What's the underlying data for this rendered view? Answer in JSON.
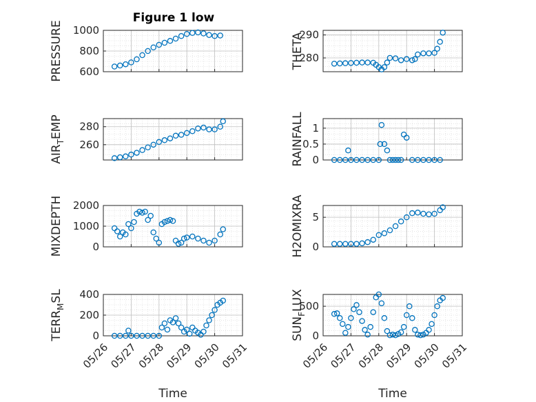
{
  "figure_title": "Figure 1 low",
  "colors": {
    "marker": "#0072BD",
    "axis": "#262626",
    "grid": "#bfbfbf",
    "minor_grid": "#dcdcdc",
    "background": "#ffffff"
  },
  "chart_data": [
    {
      "type": "scatter",
      "name": "pressure",
      "title": "Figure 1 low",
      "ylabel": "PRESSURE",
      "xlim": [
        "2020-05-26",
        "2020-05-31"
      ],
      "ylim": [
        600,
        1000
      ],
      "yticks": [
        600,
        800,
        1000
      ],
      "xticks": [
        "05/26",
        "05/27",
        "05/28",
        "05/29",
        "05/30",
        "05/31"
      ],
      "show_xticks": false,
      "xlabel": "",
      "x": [
        0.4,
        0.6,
        0.8,
        1.0,
        1.2,
        1.4,
        1.6,
        1.8,
        2.0,
        2.2,
        2.4,
        2.6,
        2.8,
        3.0,
        3.2,
        3.4,
        3.6,
        3.8,
        4.0,
        4.2
      ],
      "y": [
        650,
        660,
        672,
        690,
        720,
        760,
        800,
        835,
        860,
        880,
        898,
        920,
        945,
        965,
        975,
        980,
        970,
        955,
        945,
        950
      ]
    },
    {
      "type": "scatter",
      "name": "theta",
      "ylabel": "THETA",
      "xlim": [
        "2020-05-26",
        "2020-05-31"
      ],
      "ylim": [
        274,
        292
      ],
      "yticks": [
        280,
        290
      ],
      "xticks": [
        "05/26",
        "05/27",
        "05/28",
        "05/29",
        "05/30",
        "05/31"
      ],
      "show_xticks": false,
      "xlabel": "",
      "x": [
        0.4,
        0.6,
        0.8,
        1.0,
        1.2,
        1.4,
        1.6,
        1.8,
        1.9,
        2.0,
        2.1,
        2.2,
        2.3,
        2.4,
        2.6,
        2.8,
        3.0,
        3.2,
        3.3,
        3.4,
        3.6,
        3.8,
        4.0,
        4.1,
        4.2,
        4.3
      ],
      "y": [
        277.5,
        277.6,
        277.7,
        277.8,
        277.9,
        278.0,
        278.0,
        277.9,
        277.0,
        276.0,
        275.0,
        276.0,
        278.0,
        280.0,
        279.8,
        279.0,
        279.5,
        279.0,
        279.5,
        281.5,
        282.0,
        282.0,
        282.2,
        284.0,
        287.0,
        291.0
      ]
    },
    {
      "type": "scatter",
      "name": "air_temp",
      "ylabel": "AIR_TEMP",
      "xlim": [
        "2020-05-26",
        "2020-05-31"
      ],
      "ylim": [
        243,
        289
      ],
      "yticks": [
        260,
        280
      ],
      "xticks": [
        "05/26",
        "05/27",
        "05/28",
        "05/29",
        "05/30",
        "05/31"
      ],
      "show_xticks": false,
      "xlabel": "",
      "x": [
        0.4,
        0.6,
        0.8,
        1.0,
        1.2,
        1.4,
        1.6,
        1.8,
        2.0,
        2.2,
        2.4,
        2.6,
        2.8,
        3.0,
        3.2,
        3.4,
        3.6,
        3.8,
        4.0,
        4.2,
        4.3
      ],
      "y": [
        245,
        246,
        247,
        249,
        251,
        254,
        257,
        260,
        263,
        265,
        267,
        270,
        271,
        273,
        275,
        278,
        279,
        277,
        277,
        280,
        286
      ]
    },
    {
      "type": "scatter",
      "name": "rainfall",
      "ylabel": "RAINFALL",
      "xlim": [
        "2020-05-26",
        "2020-05-31"
      ],
      "ylim": [
        0,
        1.3
      ],
      "yticks": [
        0,
        0.5,
        1
      ],
      "xticks": [
        "05/26",
        "05/27",
        "05/28",
        "05/29",
        "05/30",
        "05/31"
      ],
      "show_xticks": false,
      "xlabel": "",
      "x": [
        0.4,
        0.6,
        0.8,
        0.9,
        1.0,
        1.2,
        1.4,
        1.6,
        1.8,
        2.0,
        2.05,
        2.1,
        2.2,
        2.3,
        2.4,
        2.5,
        2.6,
        2.7,
        2.8,
        2.9,
        3.0,
        3.2,
        3.4,
        3.6,
        3.8,
        4.0,
        4.2
      ],
      "y": [
        0,
        0,
        0,
        0.3,
        0,
        0,
        0,
        0,
        0,
        0,
        0.5,
        1.1,
        0.5,
        0.3,
        0,
        0,
        0,
        0,
        0,
        0.8,
        0.7,
        0,
        0,
        0,
        0,
        0,
        0
      ]
    },
    {
      "type": "scatter",
      "name": "mixdepth",
      "ylabel": "MIXDEPTH",
      "xlim": [
        "2020-05-26",
        "2020-05-31"
      ],
      "ylim": [
        0,
        2000
      ],
      "yticks": [
        0,
        1000,
        2000
      ],
      "xticks": [
        "05/26",
        "05/27",
        "05/28",
        "05/29",
        "05/30",
        "05/31"
      ],
      "show_xticks": false,
      "xlabel": "",
      "x": [
        0.4,
        0.5,
        0.6,
        0.7,
        0.8,
        0.9,
        1.0,
        1.1,
        1.2,
        1.3,
        1.4,
        1.5,
        1.6,
        1.7,
        1.8,
        1.9,
        2.0,
        2.1,
        2.2,
        2.3,
        2.4,
        2.5,
        2.6,
        2.7,
        2.8,
        2.9,
        3.0,
        3.2,
        3.4,
        3.6,
        3.8,
        4.0,
        4.2,
        4.3
      ],
      "y": [
        900,
        750,
        500,
        700,
        600,
        1100,
        900,
        1200,
        1600,
        1700,
        1650,
        1700,
        1300,
        1500,
        700,
        400,
        200,
        1100,
        1200,
        1250,
        1300,
        1250,
        300,
        150,
        200,
        400,
        450,
        500,
        400,
        300,
        200,
        300,
        600,
        850
      ]
    },
    {
      "type": "scatter",
      "name": "h2omixra",
      "ylabel": "H2OMIXRA",
      "xlim": [
        "2020-05-26",
        "2020-05-31"
      ],
      "ylim": [
        0,
        7
      ],
      "yticks": [
        0,
        5
      ],
      "xticks": [
        "05/26",
        "05/27",
        "05/28",
        "05/29",
        "05/30",
        "05/31"
      ],
      "show_xticks": false,
      "xlabel": "",
      "x": [
        0.4,
        0.6,
        0.8,
        1.0,
        1.2,
        1.4,
        1.6,
        1.8,
        2.0,
        2.2,
        2.4,
        2.6,
        2.8,
        3.0,
        3.2,
        3.4,
        3.6,
        3.8,
        4.0,
        4.2,
        4.3
      ],
      "y": [
        0.5,
        0.5,
        0.5,
        0.5,
        0.5,
        0.6,
        0.8,
        1.2,
        2.0,
        2.3,
        2.8,
        3.5,
        4.3,
        5.0,
        5.7,
        5.8,
        5.6,
        5.5,
        5.6,
        6.2,
        6.7
      ]
    },
    {
      "type": "scatter",
      "name": "terr_msl",
      "ylabel": "TERR_MSL",
      "xlim": [
        "2020-05-26",
        "2020-05-31"
      ],
      "ylim": [
        0,
        400
      ],
      "yticks": [
        0,
        200,
        400
      ],
      "xticks": [
        "05/26",
        "05/27",
        "05/28",
        "05/29",
        "05/30",
        "05/31"
      ],
      "show_xticks": true,
      "xlabel": "Time",
      "x": [
        0.4,
        0.6,
        0.8,
        0.9,
        1.0,
        1.2,
        1.4,
        1.6,
        1.8,
        2.0,
        2.1,
        2.2,
        2.3,
        2.4,
        2.5,
        2.6,
        2.7,
        2.8,
        2.9,
        3.0,
        3.1,
        3.2,
        3.3,
        3.4,
        3.5,
        3.6,
        3.7,
        3.8,
        3.9,
        4.0,
        4.1,
        4.2,
        4.3
      ],
      "y": [
        0,
        0,
        0,
        50,
        0,
        0,
        0,
        0,
        0,
        0,
        80,
        120,
        60,
        150,
        130,
        170,
        120,
        80,
        40,
        60,
        20,
        80,
        50,
        30,
        10,
        40,
        100,
        150,
        200,
        250,
        300,
        320,
        340
      ]
    },
    {
      "type": "scatter",
      "name": "sunflux",
      "ylabel": "SUN_FLUX",
      "xlim": [
        "2020-05-26",
        "2020-05-31"
      ],
      "ylim": [
        0,
        700
      ],
      "yticks": [
        0,
        500
      ],
      "xticks": [
        "05/26",
        "05/27",
        "05/28",
        "05/29",
        "05/30",
        "05/31"
      ],
      "show_xticks": true,
      "xlabel": "Time",
      "x": [
        0.4,
        0.5,
        0.6,
        0.7,
        0.8,
        0.9,
        1.0,
        1.1,
        1.2,
        1.3,
        1.4,
        1.5,
        1.6,
        1.7,
        1.8,
        1.9,
        2.0,
        2.1,
        2.2,
        2.3,
        2.4,
        2.5,
        2.6,
        2.7,
        2.8,
        2.9,
        3.0,
        3.1,
        3.2,
        3.3,
        3.4,
        3.5,
        3.6,
        3.7,
        3.8,
        3.9,
        4.0,
        4.1,
        4.2,
        4.3
      ],
      "y": [
        370,
        380,
        300,
        200,
        50,
        150,
        300,
        450,
        520,
        400,
        250,
        100,
        20,
        150,
        400,
        650,
        700,
        550,
        300,
        80,
        10,
        20,
        10,
        30,
        60,
        150,
        350,
        500,
        300,
        100,
        20,
        10,
        20,
        50,
        100,
        200,
        350,
        500,
        600,
        640
      ]
    }
  ]
}
